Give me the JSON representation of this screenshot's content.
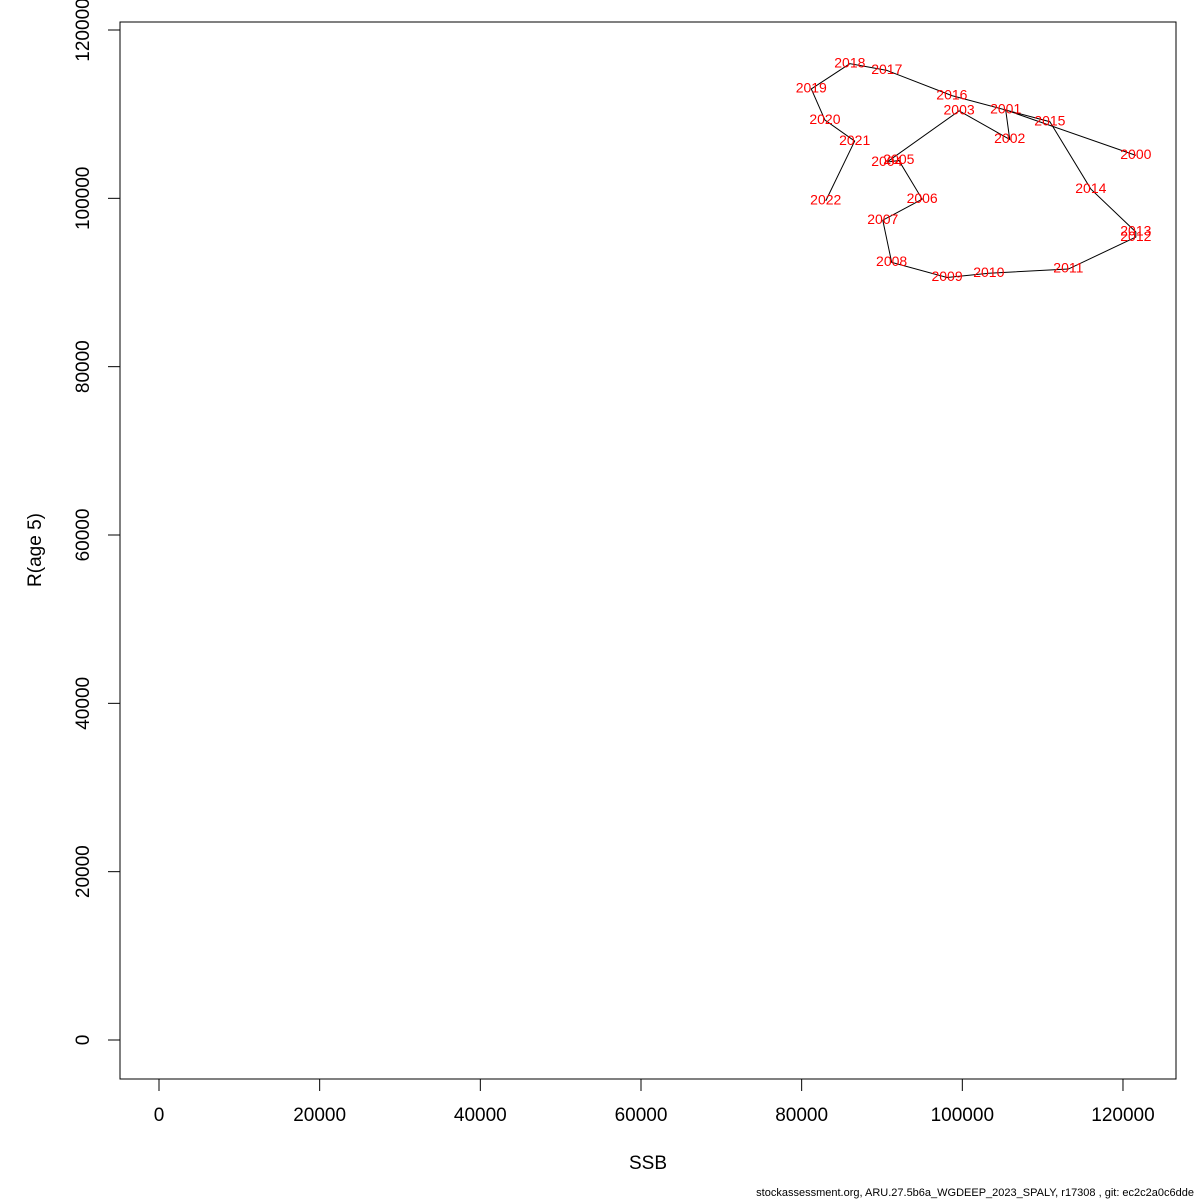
{
  "chart_data": {
    "type": "scatter",
    "x_label": "SSB",
    "y_label": "R(age 5)",
    "caption": "stockassessment.org, ARU.27.5b6a_WGDEEP_2023_SPALY, r17308 , git: ec2c2a0c6dde",
    "labels": [
      "2000",
      "2001",
      "2002",
      "2003",
      "2004",
      "2005",
      "2006",
      "2007",
      "2008",
      "2009",
      "2010",
      "2011",
      "2012",
      "2013",
      "2014",
      "2015",
      "2016",
      "2017",
      "2018",
      "2019",
      "2020",
      "2021",
      "2022"
    ],
    "x": [
      121600,
      105400,
      105900,
      99600,
      90600,
      92100,
      95000,
      90100,
      91200,
      98100,
      103300,
      113200,
      121600,
      121600,
      116000,
      110900,
      98700,
      90600,
      86000,
      81200,
      82900,
      86600,
      83000
    ],
    "values": [
      105100,
      110500,
      107000,
      110400,
      104300,
      104500,
      99900,
      97400,
      92400,
      90600,
      91100,
      91600,
      95400,
      96000,
      101100,
      109100,
      112200,
      115200,
      116000,
      113000,
      109300,
      106800,
      99700
    ],
    "xlim": [
      -4855,
      126600
    ],
    "ylim": [
      -4633,
      120950
    ],
    "xticks": [
      0,
      20000,
      40000,
      60000,
      80000,
      100000,
      120000
    ],
    "yticks": [
      0,
      20000,
      40000,
      60000,
      80000,
      100000,
      120000
    ],
    "line_color": "#000000",
    "label_color": "#ff0000"
  }
}
